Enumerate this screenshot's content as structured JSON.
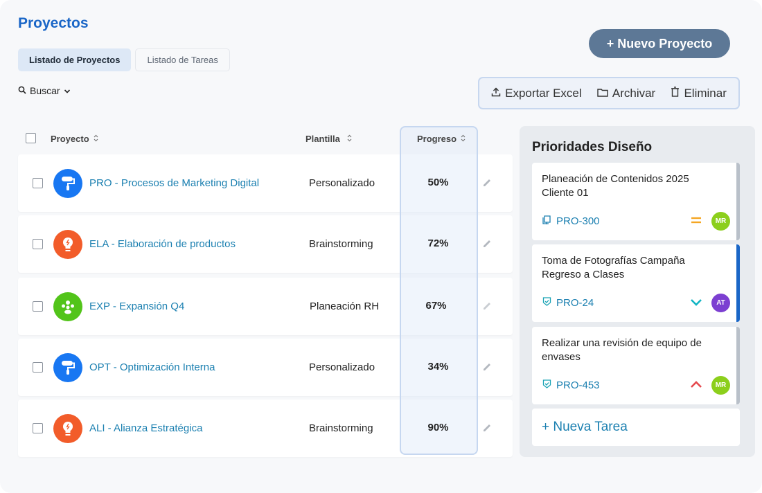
{
  "page": {
    "title": "Proyectos"
  },
  "tabs": [
    {
      "label": "Listado de Proyectos",
      "active": true
    },
    {
      "label": "Listado de Tareas",
      "active": false
    }
  ],
  "search": {
    "label": "Buscar",
    "icon": "search-icon"
  },
  "actions": {
    "new_project": "+ Nuevo Proyecto",
    "export": "Exportar Excel",
    "archive": "Archivar",
    "delete": "Eliminar"
  },
  "table": {
    "headers": {
      "project": "Proyecto",
      "template": "Plantilla",
      "progress": "Progreso"
    },
    "rows": [
      {
        "name": "PRO - Procesos de Marketing Digital",
        "template": "Personalizado",
        "progress": "50%",
        "icon": "paint-roller-icon",
        "color": "#1877f2"
      },
      {
        "name": "ELA - Elaboración de productos",
        "template": "Brainstorming",
        "progress": "72%",
        "icon": "lightbulb-icon",
        "color": "#f25c2a"
      },
      {
        "name": "EXP - Expansión Q4",
        "template": "Planeación RH",
        "progress": "67%",
        "icon": "team-icon",
        "color": "#52c41a"
      },
      {
        "name": "OPT - Optimización Interna",
        "template": "Personalizado",
        "progress": "34%",
        "icon": "paint-roller-icon",
        "color": "#1877f2"
      },
      {
        "name": "ALI - Alianza Estratégica",
        "template": "Brainstorming",
        "progress": "90%",
        "icon": "lightbulb-icon",
        "color": "#f25c2a"
      }
    ]
  },
  "sidebar": {
    "title": "Prioridades Diseño",
    "cards": [
      {
        "title": "Planeación de Contenidos 2025 Cliente 01",
        "id": "PRO-300",
        "id_icon": "book-icon",
        "priority": "medium",
        "assignee": "MR",
        "assignee_color": "#8ccf1c",
        "bar_color": "#b9c0c9"
      },
      {
        "title": "Toma de Fotografías Campaña Regreso a Clases",
        "id": "PRO-24",
        "id_icon": "shield-check-icon",
        "priority": "low",
        "assignee": "AT",
        "assignee_color": "#7c3fd1",
        "bar_color": "#1a66c7"
      },
      {
        "title": "Realizar una revisión de equipo de envases",
        "id": "PRO-453",
        "id_icon": "shield-check-icon",
        "priority": "high",
        "assignee": "MR",
        "assignee_color": "#8ccf1c",
        "bar_color": "#b9c0c9"
      }
    ],
    "new_task": "+ Nueva Tarea"
  },
  "colors": {
    "accent": "#1a66c7",
    "link": "#1a7fb0",
    "priority_medium": "#f5a623",
    "priority_low": "#13b5c4",
    "priority_high": "#e5484d"
  }
}
